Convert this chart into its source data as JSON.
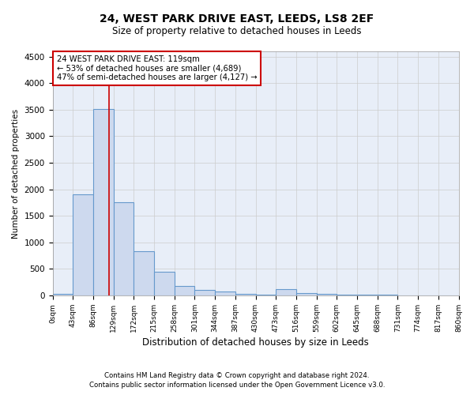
{
  "title": "24, WEST PARK DRIVE EAST, LEEDS, LS8 2EF",
  "subtitle": "Size of property relative to detached houses in Leeds",
  "xlabel": "Distribution of detached houses by size in Leeds",
  "ylabel": "Number of detached properties",
  "bar_color": "#cdd9ee",
  "bar_edgecolor": "#6699cc",
  "bar_linewidth": 0.8,
  "grid_color": "#cccccc",
  "background_color": "#e8eef8",
  "annotation_box_color": "#cc0000",
  "vline_color": "#cc0000",
  "annotation_text_line1": "24 WEST PARK DRIVE EAST: 119sqm",
  "annotation_text_line2": "← 53% of detached houses are smaller (4,689)",
  "annotation_text_line3": "47% of semi-detached houses are larger (4,127) →",
  "property_sqm": 119,
  "bin_edges": [
    0,
    43,
    86,
    129,
    172,
    215,
    258,
    301,
    344,
    387,
    430,
    473,
    516,
    559,
    602,
    645,
    688,
    731,
    774,
    817,
    860
  ],
  "bin_counts": [
    25,
    1900,
    3520,
    1760,
    840,
    440,
    175,
    100,
    70,
    25,
    20,
    120,
    50,
    35,
    15,
    10,
    8,
    5,
    4,
    4
  ],
  "ylim": [
    0,
    4600
  ],
  "yticks": [
    0,
    500,
    1000,
    1500,
    2000,
    2500,
    3000,
    3500,
    4000,
    4500
  ],
  "footer_line1": "Contains HM Land Registry data © Crown copyright and database right 2024.",
  "footer_line2": "Contains public sector information licensed under the Open Government Licence v3.0."
}
